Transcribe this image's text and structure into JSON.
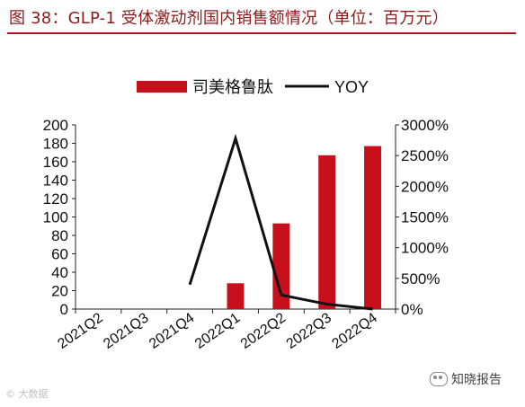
{
  "title": "图 38：GLP-1 受体激动剂国内销售额情况（单位：百万元）",
  "watermark_left": "© 大数据",
  "watermark_right": "知晓报告",
  "chart_data": {
    "type": "bar",
    "title": "图 38：GLP-1 受体激动剂国内销售额情况（单位：百万元）",
    "categories": [
      "2021Q2",
      "2021Q3",
      "2021Q4",
      "2022Q1",
      "2022Q2",
      "2022Q3",
      "2022Q4"
    ],
    "series": [
      {
        "name": "司美格鲁肽",
        "kind": "bar",
        "axis": "left",
        "values": [
          0,
          0,
          0,
          28,
          93,
          167,
          177
        ],
        "color": "#c8101c"
      },
      {
        "name": "YOY",
        "kind": "line",
        "axis": "right",
        "values": [
          null,
          null,
          400,
          2780,
          230,
          80,
          0
        ],
        "unit": "%",
        "color": "#111111"
      }
    ],
    "y_left": {
      "min": 0,
      "max": 200,
      "step": 20,
      "ticks": [
        "0",
        "20",
        "40",
        "60",
        "80",
        "100",
        "120",
        "140",
        "160",
        "180",
        "200"
      ]
    },
    "y_right": {
      "min": 0,
      "max": 3000,
      "step": 500,
      "ticks": [
        "0%",
        "500%",
        "1000%",
        "1500%",
        "2000%",
        "2500%",
        "3000%"
      ]
    },
    "legend": "top-center",
    "grid": false
  }
}
